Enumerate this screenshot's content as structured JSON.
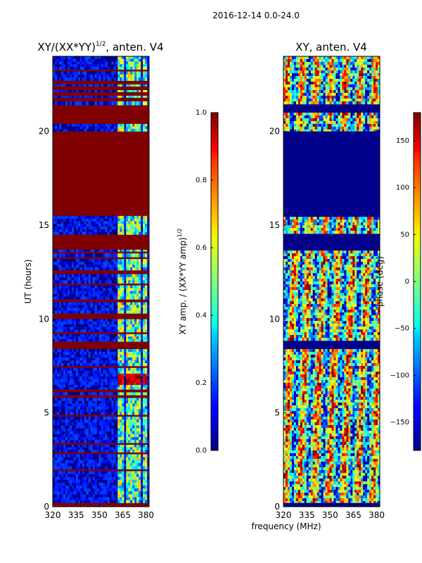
{
  "figure": {
    "suptitle": "2016-12-14 0.0-24.0",
    "xlabel_shared": "frequency (MHz)"
  },
  "chart_data": [
    {
      "type": "heatmap",
      "title_main": "XY/(XX*YY)",
      "title_sup": "1/2",
      "title_tail": ", anten. V4",
      "xlabel": "",
      "ylabel": "UT (hours)",
      "xlim": [
        320,
        382
      ],
      "ylim": [
        0,
        24
      ],
      "xticks": [
        320,
        335,
        350,
        365,
        380
      ],
      "yticks": [
        0,
        5,
        10,
        15,
        20
      ],
      "colorscale": "jet",
      "colorbar": {
        "label_main": "XY amp. / (XX*YY amp)",
        "label_sup": "1/2",
        "range": [
          0.0,
          1.0
        ],
        "ticks": [
          "0.0",
          "0.2",
          "0.4",
          "0.6",
          "0.8",
          "1.0"
        ],
        "tick_values": [
          0.0,
          0.2,
          0.4,
          0.6,
          0.8,
          1.0
        ]
      },
      "time_bands": [
        {
          "t0": 0.0,
          "t1": 0.2,
          "kind": "flag"
        },
        {
          "t0": 0.2,
          "t1": 1.9,
          "kind": "data"
        },
        {
          "t0": 1.9,
          "t1": 2.0,
          "kind": "flag"
        },
        {
          "t0": 2.0,
          "t1": 2.8,
          "kind": "data"
        },
        {
          "t0": 2.8,
          "t1": 2.9,
          "kind": "flag"
        },
        {
          "t0": 2.9,
          "t1": 3.3,
          "kind": "data"
        },
        {
          "t0": 3.3,
          "t1": 3.4,
          "kind": "flag"
        },
        {
          "t0": 3.4,
          "t1": 4.8,
          "kind": "data"
        },
        {
          "t0": 4.8,
          "t1": 4.9,
          "kind": "flag"
        },
        {
          "t0": 4.9,
          "t1": 5.8,
          "kind": "data"
        },
        {
          "t0": 5.8,
          "t1": 5.95,
          "kind": "flag"
        },
        {
          "t0": 5.95,
          "t1": 6.1,
          "kind": "data"
        },
        {
          "t0": 6.1,
          "t1": 6.25,
          "kind": "flag"
        },
        {
          "t0": 6.25,
          "t1": 6.5,
          "kind": "data"
        },
        {
          "t0": 6.5,
          "t1": 7.1,
          "kind": "hot"
        },
        {
          "t0": 7.1,
          "t1": 7.4,
          "kind": "data"
        },
        {
          "t0": 7.4,
          "t1": 7.5,
          "kind": "flag"
        },
        {
          "t0": 7.5,
          "t1": 8.4,
          "kind": "data"
        },
        {
          "t0": 8.4,
          "t1": 8.8,
          "kind": "flag"
        },
        {
          "t0": 8.8,
          "t1": 9.2,
          "kind": "data"
        },
        {
          "t0": 9.2,
          "t1": 9.3,
          "kind": "flag"
        },
        {
          "t0": 9.3,
          "t1": 10.0,
          "kind": "data"
        },
        {
          "t0": 10.0,
          "t1": 10.3,
          "kind": "flag"
        },
        {
          "t0": 10.3,
          "t1": 10.9,
          "kind": "data"
        },
        {
          "t0": 10.9,
          "t1": 11.05,
          "kind": "flag"
        },
        {
          "t0": 11.05,
          "t1": 11.8,
          "kind": "data"
        },
        {
          "t0": 11.8,
          "t1": 11.9,
          "kind": "flag"
        },
        {
          "t0": 11.9,
          "t1": 12.4,
          "kind": "data"
        },
        {
          "t0": 12.4,
          "t1": 12.6,
          "kind": "flag"
        },
        {
          "t0": 12.6,
          "t1": 13.2,
          "kind": "data"
        },
        {
          "t0": 13.2,
          "t1": 13.3,
          "kind": "flag"
        },
        {
          "t0": 13.3,
          "t1": 13.5,
          "kind": "data"
        },
        {
          "t0": 13.5,
          "t1": 13.6,
          "kind": "flag"
        },
        {
          "t0": 13.6,
          "t1": 13.7,
          "kind": "data"
        },
        {
          "t0": 13.7,
          "t1": 14.5,
          "kind": "flag"
        },
        {
          "t0": 14.5,
          "t1": 15.5,
          "kind": "data"
        },
        {
          "t0": 15.5,
          "t1": 20.0,
          "kind": "flag"
        },
        {
          "t0": 20.0,
          "t1": 20.4,
          "kind": "data"
        },
        {
          "t0": 20.4,
          "t1": 21.4,
          "kind": "flag"
        },
        {
          "t0": 21.4,
          "t1": 21.6,
          "kind": "data"
        },
        {
          "t0": 21.6,
          "t1": 21.8,
          "kind": "flag"
        },
        {
          "t0": 21.8,
          "t1": 21.9,
          "kind": "data"
        },
        {
          "t0": 21.9,
          "t1": 22.1,
          "kind": "flag"
        },
        {
          "t0": 22.1,
          "t1": 22.2,
          "kind": "data"
        },
        {
          "t0": 22.2,
          "t1": 22.4,
          "kind": "flag"
        },
        {
          "t0": 22.4,
          "t1": 22.5,
          "kind": "data"
        },
        {
          "t0": 22.5,
          "t1": 22.7,
          "kind": "flag"
        },
        {
          "t0": 22.7,
          "t1": 23.2,
          "kind": "data"
        },
        {
          "t0": 23.2,
          "t1": 23.3,
          "kind": "flag"
        },
        {
          "t0": 23.3,
          "t1": 24.0,
          "kind": "data"
        }
      ],
      "bright_freq_bands": [
        [
          362,
          366
        ],
        [
          367,
          372
        ],
        [
          373,
          377
        ],
        [
          378,
          381
        ]
      ]
    },
    {
      "type": "heatmap",
      "title_main": "XY, anten. V4",
      "title_sup": "",
      "title_tail": "",
      "xlabel": "frequency (MHz)",
      "ylabel": "",
      "xlim": [
        320,
        382
      ],
      "ylim": [
        0,
        24
      ],
      "xticks": [
        320,
        335,
        350,
        365,
        380
      ],
      "yticks": [
        0,
        5,
        10,
        15,
        20
      ],
      "colorscale": "jet",
      "colorbar": {
        "label_main": "phase (deg)",
        "label_sup": "",
        "range": [
          -180,
          180
        ],
        "ticks": [
          "−150",
          "−100",
          "−50",
          "0",
          "50",
          "100",
          "150"
        ],
        "tick_values": [
          -150,
          -100,
          -50,
          0,
          50,
          100,
          150
        ]
      },
      "flagged_blocks": [
        [
          15.5,
          20.0
        ],
        [
          13.7,
          14.5
        ],
        [
          0.0,
          0.2
        ],
        [
          8.4,
          8.8
        ],
        [
          21.0,
          21.4
        ]
      ]
    }
  ],
  "colors": {
    "flag": "#800000",
    "background": "#ffffff",
    "axis": "#000000"
  }
}
